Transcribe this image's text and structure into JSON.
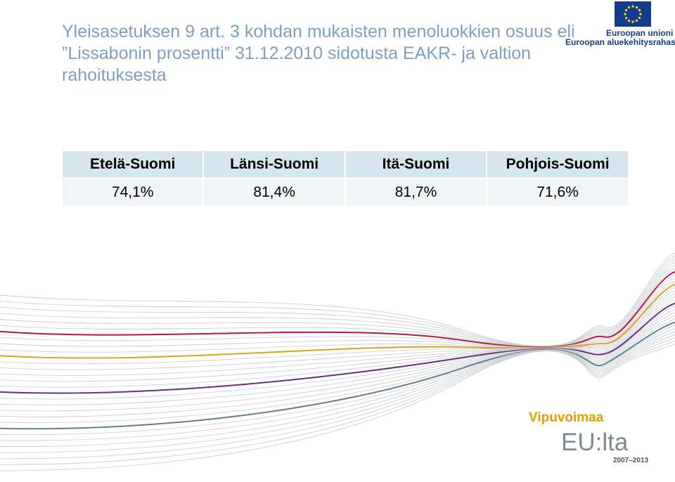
{
  "title": {
    "line1": "Yleisasetuksen 9 art. 3 kohdan mukaisten menoluokkien osuus eli",
    "line2": "”Lissabonin prosentti” 31.12.2010 sidotusta EAKR- ja valtion",
    "line3": "rahoituksesta"
  },
  "eu_logo": {
    "line1": "Euroopan unioni",
    "line2": "Euroopan aluekehitysrahasto",
    "flag_color": "#153b8c",
    "star_color": "#ffdd00"
  },
  "table": {
    "headers": [
      "Etelä-Suomi",
      "Länsi-Suomi",
      "Itä-Suomi",
      "Pohjois-Suomi"
    ],
    "values": [
      "74,1%",
      "81,4%",
      "81,7%",
      "71,6%"
    ]
  },
  "brand_logo": {
    "top": "Vipuvoimaa",
    "main": "EU:lta",
    "years": "2007–2013"
  },
  "decoration": {
    "accent_colors": [
      "#b01c3c",
      "#e0a11b",
      "#6a2d7a",
      "#5e7f95"
    ]
  }
}
